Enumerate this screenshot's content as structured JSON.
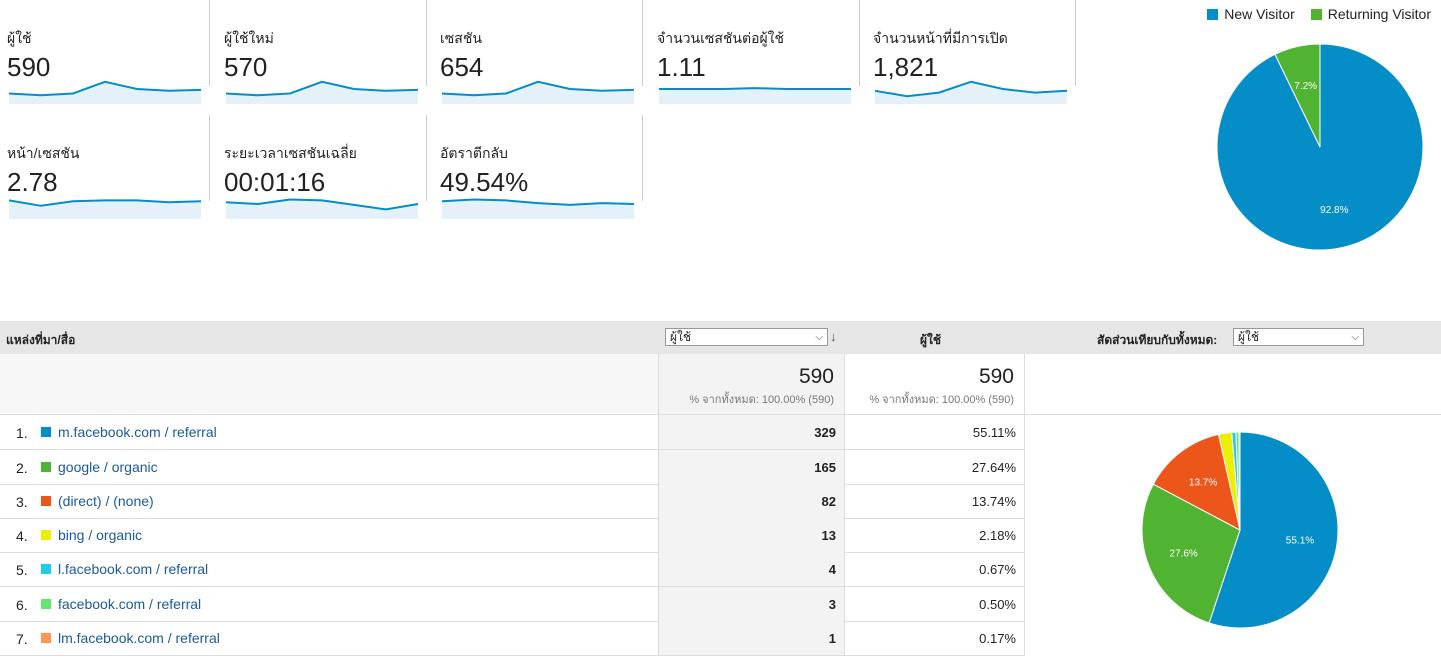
{
  "metrics": [
    {
      "label": "ผู้ใช้",
      "value": "590",
      "trend": [
        5,
        3,
        5,
        18,
        10,
        8,
        9
      ]
    },
    {
      "label": "ผู้ใช้ใหม่",
      "value": "570",
      "trend": [
        5,
        3,
        5,
        18,
        10,
        8,
        9
      ]
    },
    {
      "label": "เซสชัน",
      "value": "654",
      "trend": [
        5,
        3,
        5,
        18,
        10,
        8,
        9
      ]
    },
    {
      "label": "จำนวนเซสชันต่อผู้ใช้",
      "value": "1.11",
      "trend": [
        10,
        10,
        10,
        11,
        10,
        10,
        10
      ]
    },
    {
      "label": "จำนวนหน้าที่มีการเปิด",
      "value": "1,821",
      "trend": [
        8,
        2,
        6,
        18,
        10,
        6,
        8
      ]
    },
    {
      "label": "หน้า/เซสชัน",
      "value": "2.78",
      "trend": [
        14,
        8,
        13,
        14,
        14,
        12,
        13
      ]
    },
    {
      "label": "ระยะเวลาเซสชันเฉลี่ย",
      "value": "00:01:16",
      "trend": [
        12,
        10,
        15,
        14,
        9,
        4,
        10
      ]
    },
    {
      "label": "อัตราตีกลับ",
      "value": "49.54%",
      "trend": [
        13,
        15,
        14,
        11,
        9,
        11,
        10
      ]
    }
  ],
  "visitor_legend": [
    {
      "label": "New Visitor",
      "color": "#058dc7"
    },
    {
      "label": "Returning Visitor",
      "color": "#50b432"
    }
  ],
  "chart_data": [
    {
      "type": "pie",
      "series": [
        {
          "name": "New Visitor",
          "value": 92.8,
          "label": "92.8%",
          "color": "#058dc7"
        },
        {
          "name": "Returning Visitor",
          "value": 7.2,
          "label": "7.2%",
          "color": "#50b432"
        }
      ]
    },
    {
      "type": "pie",
      "series": [
        {
          "name": "m.facebook.com / referral",
          "value": 55.11,
          "label": "55.1%",
          "color": "#058dc7"
        },
        {
          "name": "google / organic",
          "value": 27.64,
          "label": "27.6%",
          "color": "#50b432"
        },
        {
          "name": "(direct) / (none)",
          "value": 13.74,
          "label": "13.7%",
          "color": "#ed561b"
        },
        {
          "name": "bing / organic",
          "value": 2.18,
          "label": "",
          "color": "#edef00"
        },
        {
          "name": "l.facebook.com / referral",
          "value": 0.67,
          "label": "",
          "color": "#24cbe5"
        },
        {
          "name": "facebook.com / referral",
          "value": 0.5,
          "label": "",
          "color": "#64e572"
        },
        {
          "name": "lm.facebook.com / referral",
          "value": 0.17,
          "label": "",
          "color": "#ff9655"
        }
      ]
    }
  ],
  "table": {
    "dimension_header": "แหล่งที่มา/สื่อ",
    "metric_select": "ผู้ใช้",
    "metric_header": "ผู้ใช้",
    "comparison_label": "สัดส่วนเทียบกับทั้งหมด:",
    "comparison_select": "ผู้ใช้",
    "totals": {
      "v1": "590",
      "v1_sub": "% จากทั้งหมด: 100.00% (590)",
      "v2": "590",
      "v2_sub": "% จากทั้งหมด: 100.00% (590)"
    },
    "rows": [
      {
        "idx": "1.",
        "source": "m.facebook.com / referral",
        "users": "329",
        "pct": "55.11%",
        "color": "#058dc7"
      },
      {
        "idx": "2.",
        "source": "google / organic",
        "users": "165",
        "pct": "27.64%",
        "color": "#50b432"
      },
      {
        "idx": "3.",
        "source": "(direct) / (none)",
        "users": "82",
        "pct": "13.74%",
        "color": "#ed561b"
      },
      {
        "idx": "4.",
        "source": "bing / organic",
        "users": "13",
        "pct": "2.18%",
        "color": "#edef00"
      },
      {
        "idx": "5.",
        "source": "l.facebook.com / referral",
        "users": "4",
        "pct": "0.67%",
        "color": "#24cbe5"
      },
      {
        "idx": "6.",
        "source": "facebook.com / referral",
        "users": "3",
        "pct": "0.50%",
        "color": "#64e572"
      },
      {
        "idx": "7.",
        "source": "lm.facebook.com / referral",
        "users": "1",
        "pct": "0.17%",
        "color": "#ff9655"
      }
    ]
  }
}
